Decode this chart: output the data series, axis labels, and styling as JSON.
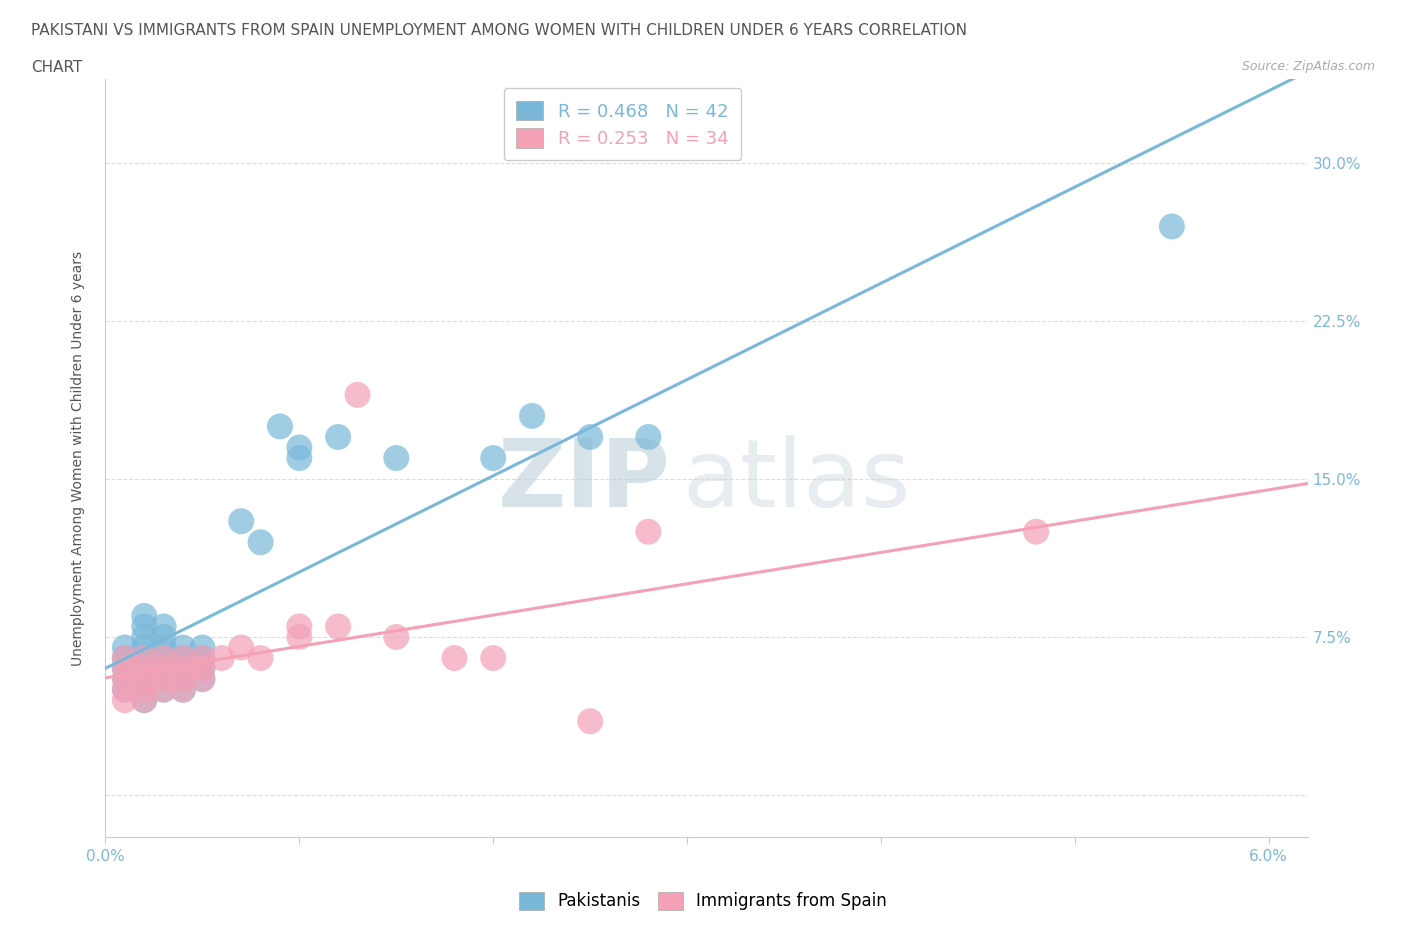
{
  "title_line1": "PAKISTANI VS IMMIGRANTS FROM SPAIN UNEMPLOYMENT AMONG WOMEN WITH CHILDREN UNDER 6 YEARS CORRELATION",
  "title_line2": "CHART",
  "source": "Source: ZipAtlas.com",
  "ylabel": "Unemployment Among Women with Children Under 6 years",
  "xlim": [
    0.0,
    0.062
  ],
  "ylim": [
    -0.02,
    0.34
  ],
  "xticks": [
    0.0,
    0.01,
    0.02,
    0.03,
    0.04,
    0.05,
    0.06
  ],
  "xtick_labels": [
    "0.0%",
    "",
    "",
    "",
    "",
    "",
    "6.0%"
  ],
  "yticks": [
    0.0,
    0.075,
    0.15,
    0.225,
    0.3
  ],
  "ytick_labels_right": [
    "",
    "7.5%",
    "15.0%",
    "22.5%",
    "30.0%"
  ],
  "pakistani_color": "#7ab8d9",
  "spain_color": "#f4a0b5",
  "pakistani_R": 0.468,
  "pakistani_N": 42,
  "spain_R": 0.253,
  "spain_N": 34,
  "legend_label_1": "Pakistanis",
  "legend_label_2": "Immigrants from Spain",
  "watermark_zip": "ZIP",
  "watermark_atlas": "atlas",
  "pakistani_x": [
    0.001,
    0.001,
    0.001,
    0.001,
    0.001,
    0.002,
    0.002,
    0.002,
    0.002,
    0.002,
    0.002,
    0.002,
    0.002,
    0.002,
    0.003,
    0.003,
    0.003,
    0.003,
    0.003,
    0.003,
    0.003,
    0.004,
    0.004,
    0.004,
    0.004,
    0.004,
    0.005,
    0.005,
    0.005,
    0.005,
    0.007,
    0.008,
    0.009,
    0.01,
    0.01,
    0.012,
    0.015,
    0.02,
    0.022,
    0.025,
    0.028,
    0.055
  ],
  "pakistani_y": [
    0.05,
    0.055,
    0.06,
    0.065,
    0.07,
    0.045,
    0.05,
    0.055,
    0.06,
    0.065,
    0.07,
    0.075,
    0.08,
    0.085,
    0.05,
    0.055,
    0.06,
    0.065,
    0.07,
    0.075,
    0.08,
    0.05,
    0.055,
    0.06,
    0.065,
    0.07,
    0.055,
    0.06,
    0.065,
    0.07,
    0.13,
    0.12,
    0.175,
    0.16,
    0.165,
    0.17,
    0.16,
    0.16,
    0.18,
    0.17,
    0.17,
    0.27
  ],
  "spain_x": [
    0.001,
    0.001,
    0.001,
    0.001,
    0.001,
    0.002,
    0.002,
    0.002,
    0.002,
    0.002,
    0.003,
    0.003,
    0.003,
    0.003,
    0.004,
    0.004,
    0.004,
    0.004,
    0.005,
    0.005,
    0.005,
    0.006,
    0.007,
    0.008,
    0.01,
    0.01,
    0.012,
    0.013,
    0.015,
    0.018,
    0.02,
    0.025,
    0.028,
    0.048
  ],
  "spain_y": [
    0.045,
    0.05,
    0.055,
    0.06,
    0.065,
    0.045,
    0.05,
    0.055,
    0.06,
    0.065,
    0.05,
    0.055,
    0.06,
    0.065,
    0.05,
    0.055,
    0.06,
    0.065,
    0.055,
    0.06,
    0.065,
    0.065,
    0.07,
    0.065,
    0.075,
    0.08,
    0.08,
    0.19,
    0.075,
    0.065,
    0.065,
    0.035,
    0.125,
    0.125
  ],
  "background_color": "#ffffff",
  "grid_color": "#dddddd",
  "title_color": "#555555",
  "tick_color": "#7ab8d9",
  "axis_label_color": "#555555"
}
